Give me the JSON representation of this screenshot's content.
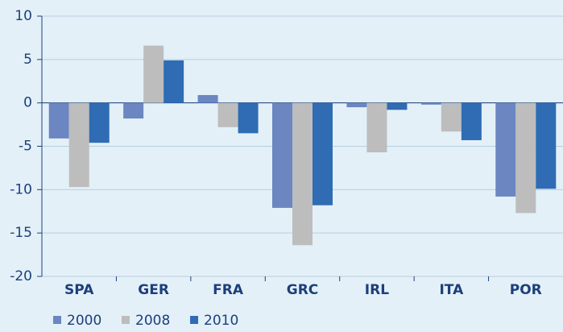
{
  "chart_data": {
    "type": "bar",
    "categories": [
      "SPA",
      "GER",
      "FRA",
      "GRC",
      "IRL",
      "ITA",
      "POR"
    ],
    "series": [
      {
        "name": "2000",
        "color": "#6b86c1",
        "values": [
          -4.1,
          -1.8,
          0.9,
          -12.1,
          -0.5,
          -0.2,
          -10.8
        ]
      },
      {
        "name": "2008",
        "color": "#bdbdbd",
        "values": [
          -9.7,
          6.6,
          -2.8,
          -16.4,
          -5.7,
          -3.3,
          -12.7
        ]
      },
      {
        "name": "2010",
        "color": "#2f6cb3",
        "values": [
          -4.6,
          4.9,
          -3.5,
          -11.8,
          -0.8,
          -4.3,
          -9.9
        ]
      }
    ],
    "ylim": [
      -20,
      10
    ],
    "yticks": [
      -20,
      -15,
      -10,
      -5,
      0,
      5,
      10
    ],
    "grid": true
  }
}
